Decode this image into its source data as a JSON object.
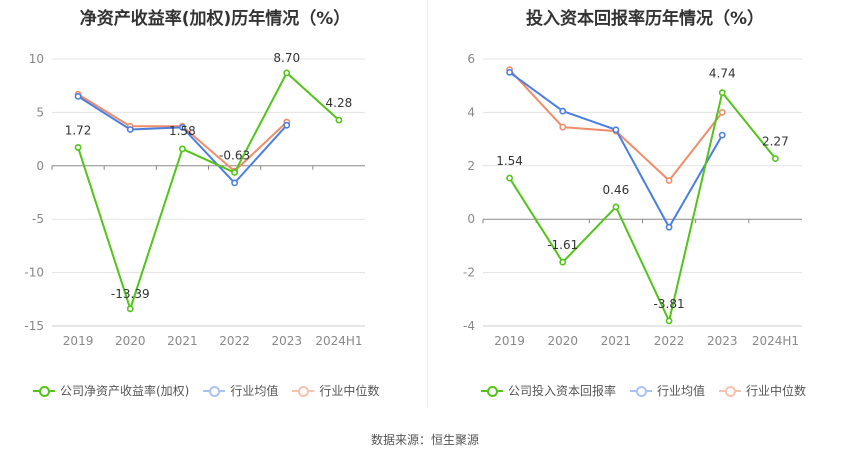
{
  "source_note": "数据来源：恒生聚源",
  "colors": {
    "company": "#52c41a",
    "avg": "#4a7fe0",
    "median": "#f08c6a",
    "grid": "#e3e3e3",
    "axis": "#999999"
  },
  "chart_data": [
    {
      "type": "line",
      "title": "净资产收益率(加权)历年情况（%）",
      "categories": [
        "2019",
        "2020",
        "2021",
        "2022",
        "2023",
        "2024H1"
      ],
      "ylim": [
        -15,
        10
      ],
      "yticks": [
        "10",
        "5",
        "0",
        "-5",
        "-10",
        "-15"
      ],
      "series": [
        {
          "name": "公司净资产收益率(加权)",
          "key": "company",
          "values": [
            1.72,
            -13.39,
            1.58,
            -0.63,
            8.7,
            4.28
          ],
          "labels": [
            "1.72",
            "-13.39",
            "1.58",
            "-0.63",
            "8.70",
            "4.28"
          ]
        },
        {
          "name": "行业均值",
          "key": "avg",
          "values": [
            6.5,
            3.4,
            3.6,
            -1.6,
            3.8,
            null
          ]
        },
        {
          "name": "行业中位数",
          "key": "median",
          "values": [
            6.7,
            3.7,
            3.7,
            -0.5,
            4.1,
            null
          ]
        }
      ]
    },
    {
      "type": "line",
      "title": "投入资本回报率历年情况（%）",
      "categories": [
        "2019",
        "2020",
        "2021",
        "2022",
        "2023",
        "2024H1"
      ],
      "ylim": [
        -4,
        6
      ],
      "yticks": [
        "6",
        "4",
        "2",
        "0",
        "-2",
        "-4"
      ],
      "series": [
        {
          "name": "公司投入资本回报率",
          "key": "company",
          "values": [
            1.54,
            -1.61,
            0.46,
            -3.81,
            4.74,
            2.27
          ],
          "labels": [
            "1.54",
            "-1.61",
            "0.46",
            "-3.81",
            "4.74",
            "2.27"
          ]
        },
        {
          "name": "行业均值",
          "key": "avg",
          "values": [
            5.5,
            4.05,
            3.35,
            -0.3,
            3.15,
            null
          ]
        },
        {
          "name": "行业中位数",
          "key": "median",
          "values": [
            5.6,
            3.45,
            3.3,
            1.45,
            4.0,
            null
          ]
        }
      ]
    }
  ]
}
